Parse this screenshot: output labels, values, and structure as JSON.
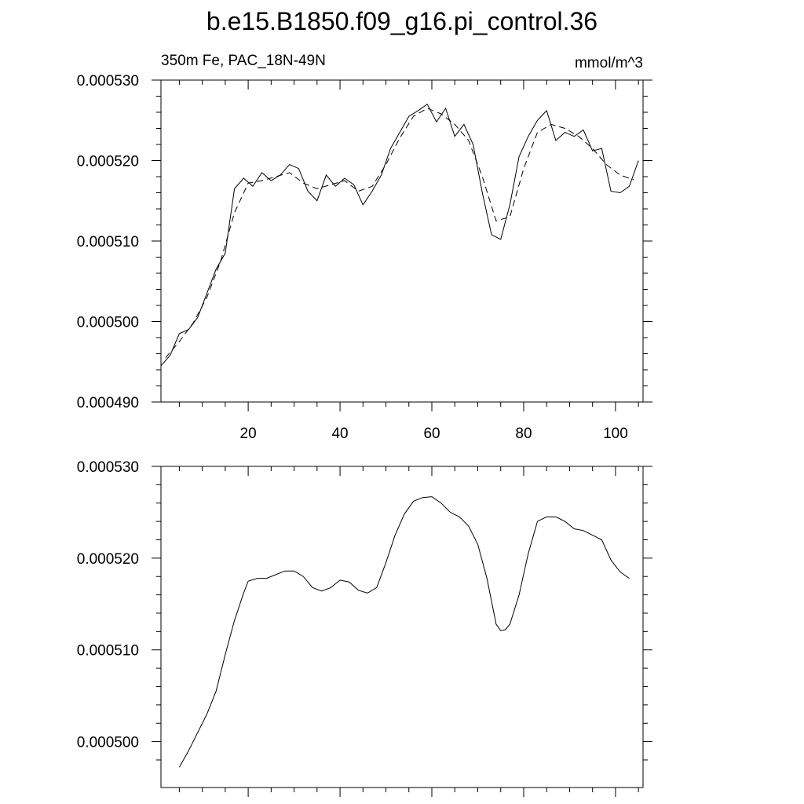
{
  "title": "b.e15.B1850.f09_g16.pi_control.36",
  "chart_data": [
    {
      "type": "line",
      "subtitle_left": "350m Fe, PAC_18N-49N",
      "subtitle_right": "mmol/m^3",
      "xlim": [
        1,
        106
      ],
      "ylim": [
        0.00049,
        0.00053
      ],
      "xticks": [
        20,
        40,
        60,
        80,
        100
      ],
      "xtick_labels": [
        "20",
        "40",
        "60",
        "80",
        "100"
      ],
      "yticks": [
        0.00049,
        0.0005,
        0.00051,
        0.00052,
        0.00053
      ],
      "ytick_labels": [
        "0.000490",
        "0.000500",
        "0.000510",
        "0.000520",
        "0.000530"
      ],
      "series": [
        {
          "style": "solid",
          "x": [
            1,
            3,
            5,
            7,
            9,
            11,
            13,
            15,
            17,
            19,
            21,
            23,
            25,
            27,
            29,
            31,
            33,
            35,
            37,
            39,
            41,
            43,
            45,
            47,
            49,
            51,
            53,
            55,
            57,
            59,
            61,
            63,
            65,
            67,
            69,
            71,
            73,
            75,
            77,
            79,
            81,
            83,
            85,
            87,
            89,
            91,
            93,
            95,
            97,
            99,
            101,
            103,
            105
          ],
          "values": [
            0.0004945,
            0.0004958,
            0.0004985,
            0.000499,
            0.0005005,
            0.0005035,
            0.0005065,
            0.0005085,
            0.0005165,
            0.0005178,
            0.0005168,
            0.0005185,
            0.0005175,
            0.0005182,
            0.0005195,
            0.000519,
            0.0005162,
            0.000515,
            0.0005182,
            0.0005168,
            0.0005178,
            0.000517,
            0.0005145,
            0.0005162,
            0.0005182,
            0.0005215,
            0.0005235,
            0.0005255,
            0.0005262,
            0.000527,
            0.0005248,
            0.0005265,
            0.000523,
            0.0005245,
            0.000522,
            0.000516,
            0.0005108,
            0.0005102,
            0.0005145,
            0.0005205,
            0.000523,
            0.000525,
            0.0005262,
            0.0005225,
            0.0005235,
            0.000523,
            0.0005238,
            0.0005212,
            0.0005215,
            0.0005162,
            0.000516,
            0.0005168,
            0.00052
          ]
        },
        {
          "style": "dashed",
          "x": [
            2,
            5,
            8,
            11,
            14,
            17,
            20,
            23,
            26,
            29,
            32,
            35,
            38,
            41,
            44,
            47,
            50,
            53,
            56,
            59,
            62,
            65,
            68,
            71,
            74,
            77,
            80,
            83,
            86,
            89,
            92,
            95,
            98,
            101,
            104
          ],
          "values": [
            0.0004955,
            0.0004975,
            0.0004998,
            0.000503,
            0.0005075,
            0.0005135,
            0.0005172,
            0.0005175,
            0.000518,
            0.0005185,
            0.0005172,
            0.0005165,
            0.000517,
            0.0005175,
            0.0005162,
            0.0005168,
            0.0005195,
            0.0005228,
            0.0005255,
            0.0005265,
            0.0005258,
            0.0005245,
            0.0005225,
            0.000518,
            0.0005125,
            0.000513,
            0.000519,
            0.0005235,
            0.0005245,
            0.000524,
            0.000523,
            0.0005215,
            0.0005195,
            0.0005182,
            0.0005176
          ]
        }
      ]
    },
    {
      "type": "line",
      "xlim": [
        1,
        106
      ],
      "ylim": [
        0.000495,
        0.00053
      ],
      "xticks": [
        20,
        40,
        60,
        80,
        100
      ],
      "yticks": [
        0.0005,
        0.00051,
        0.00052,
        0.00053
      ],
      "ytick_labels": [
        "0.000500",
        "0.000510",
        "0.000520",
        "0.000530"
      ],
      "series": [
        {
          "style": "solid",
          "x": [
            5,
            7,
            9,
            11,
            13,
            15,
            17,
            19,
            20,
            22,
            24,
            26,
            28,
            30,
            32,
            34,
            36,
            38,
            40,
            42,
            44,
            46,
            48,
            50,
            52,
            54,
            56,
            58,
            60,
            62,
            64,
            66,
            68,
            70,
            72,
            74,
            75,
            76,
            77,
            79,
            81,
            83,
            85,
            87,
            89,
            91,
            93,
            95,
            97,
            99,
            101,
            103
          ],
          "values": [
            0.0004972,
            0.000499,
            0.000501,
            0.000503,
            0.0005055,
            0.0005095,
            0.0005132,
            0.0005162,
            0.0005175,
            0.0005178,
            0.0005178,
            0.0005182,
            0.0005186,
            0.0005186,
            0.000518,
            0.0005168,
            0.0005164,
            0.0005168,
            0.0005176,
            0.0005174,
            0.0005165,
            0.0005162,
            0.0005168,
            0.0005195,
            0.0005225,
            0.0005248,
            0.0005262,
            0.0005266,
            0.0005267,
            0.000526,
            0.000525,
            0.0005245,
            0.0005235,
            0.0005215,
            0.0005178,
            0.0005128,
            0.0005121,
            0.0005122,
            0.0005128,
            0.000516,
            0.0005205,
            0.000524,
            0.0005245,
            0.0005245,
            0.000524,
            0.0005232,
            0.000523,
            0.0005225,
            0.000522,
            0.0005198,
            0.0005185,
            0.0005178
          ]
        }
      ]
    }
  ]
}
